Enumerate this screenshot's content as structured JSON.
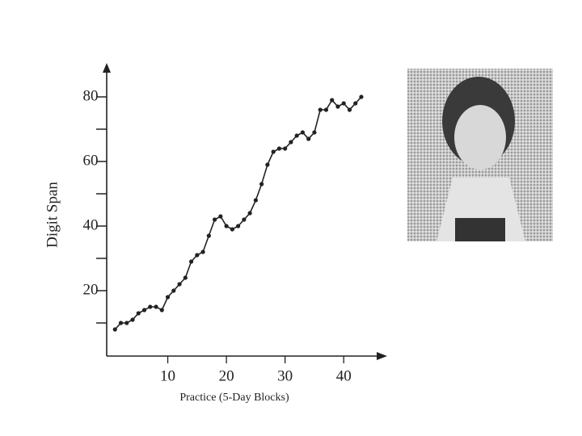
{
  "chart_data": {
    "type": "line",
    "x_label": "Practice (5-Day Blocks)",
    "y_label": "Digit Span",
    "x": [
      1,
      2,
      3,
      4,
      5,
      6,
      7,
      8,
      9,
      10,
      11,
      12,
      13,
      14,
      15,
      16,
      17,
      18,
      19,
      20,
      21,
      22,
      23,
      24,
      25,
      26,
      27,
      28,
      29,
      30,
      31,
      32,
      33,
      34,
      35,
      36,
      37,
      38,
      39,
      40,
      41,
      42,
      43
    ],
    "series": [
      {
        "color": "#222222",
        "values": [
          8,
          10,
          10,
          11,
          13,
          14,
          15,
          15,
          14,
          18,
          20,
          22,
          24,
          29,
          31,
          32,
          37,
          42,
          43,
          40,
          39,
          40,
          42,
          44,
          48,
          53,
          59,
          63,
          64,
          64,
          66,
          68,
          69,
          67,
          69,
          76,
          76,
          79,
          77,
          78,
          76,
          78,
          80
        ]
      }
    ],
    "xlim": [
      0,
      47
    ],
    "ylim": [
      0,
      90
    ],
    "xticks": [
      10,
      20,
      30,
      40
    ],
    "yticks": [
      20,
      40,
      60,
      80
    ],
    "yticks_minor": [
      10,
      30,
      50,
      70
    ]
  }
}
